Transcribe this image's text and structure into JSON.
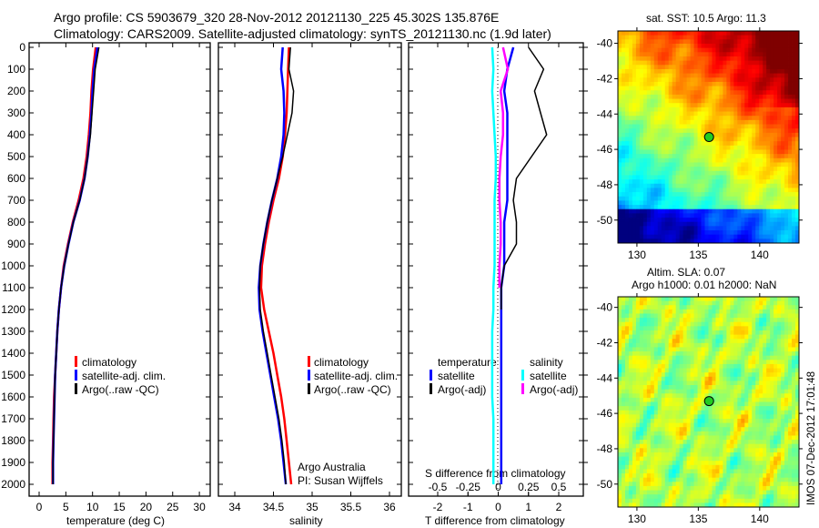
{
  "title_line1": "Argo profile: CS 5903679_320 28-Nov-2012 20121130_225 45.302S 135.876E",
  "title_line2": "Climatology: CARS2009. Satellite-adjusted climatology: synTS_20121130.nc (1.9d later)",
  "colors": {
    "climatology": "#ff0000",
    "satellite": "#0000ff",
    "argo": "#000000",
    "sal_satellite": "#00ffff",
    "sal_argo": "#ff00ff"
  },
  "chart_data": [
    {
      "type": "line",
      "name": "temperature-profile",
      "xlabel": "temperature (deg C)",
      "ylabel": "",
      "xlim": [
        -2,
        32
      ],
      "ylim": [
        2050,
        0
      ],
      "xticks": [
        "0",
        "5",
        "10",
        "15",
        "20",
        "25",
        "30"
      ],
      "yticks": [
        "0",
        "100",
        "200",
        "300",
        "400",
        "500",
        "600",
        "700",
        "800",
        "900",
        "1000",
        "1100",
        "1200",
        "1300",
        "1400",
        "1500",
        "1600",
        "1700",
        "1800",
        "1900",
        "2000"
      ],
      "depth": [
        0,
        100,
        200,
        300,
        400,
        500,
        600,
        700,
        800,
        900,
        1000,
        1100,
        1200,
        1300,
        1400,
        1500,
        1600,
        1700,
        1800,
        1900,
        2000
      ],
      "series": [
        {
          "name": "climatology",
          "values": [
            10.6,
            10.1,
            9.8,
            9.6,
            9.3,
            8.9,
            8.3,
            7.4,
            6.3,
            5.4,
            4.6,
            4.1,
            3.7,
            3.4,
            3.2,
            3.0,
            2.8,
            2.7,
            2.6,
            2.5,
            2.5
          ]
        },
        {
          "name": "satellite-adj. clim.",
          "values": [
            10.9,
            10.3,
            10.0,
            9.8,
            9.5,
            9.1,
            8.5,
            7.6,
            6.4,
            5.5,
            4.7,
            4.1,
            3.7,
            3.4,
            3.2,
            3.0,
            2.9,
            2.8,
            2.7,
            2.6,
            2.6
          ]
        },
        {
          "name": "Argo(..raw -QC)",
          "values": [
            11.2,
            10.5,
            10.2,
            9.9,
            9.6,
            9.1,
            8.5,
            7.6,
            6.4,
            5.5,
            4.7,
            4.1,
            3.7,
            3.4,
            3.2,
            3.0,
            2.9,
            2.8,
            2.7,
            2.6,
            2.6
          ]
        }
      ],
      "legend": [
        "climatology",
        "satellite-adj. clim.",
        "Argo(..raw -QC)"
      ]
    },
    {
      "type": "line",
      "name": "salinity-profile",
      "xlabel": "salinity",
      "xlim": [
        33.8,
        36.15
      ],
      "ylim": [
        2050,
        0
      ],
      "xticks": [
        "34",
        "34.5",
        "35",
        "35.5",
        "36"
      ],
      "depth": [
        0,
        100,
        200,
        300,
        400,
        500,
        600,
        700,
        800,
        900,
        1000,
        1100,
        1200,
        1300,
        1400,
        1500,
        1600,
        1700,
        1800,
        1900,
        2000
      ],
      "series": [
        {
          "name": "climatology",
          "values": [
            34.7,
            34.69,
            34.68,
            34.67,
            34.65,
            34.62,
            34.57,
            34.5,
            34.44,
            34.39,
            34.35,
            34.34,
            34.38,
            34.44,
            34.5,
            34.55,
            34.6,
            34.64,
            34.67,
            34.7,
            34.73
          ]
        },
        {
          "name": "satellite-adj. clim.",
          "values": [
            34.62,
            34.6,
            34.63,
            34.64,
            34.63,
            34.6,
            34.55,
            34.48,
            34.42,
            34.37,
            34.33,
            34.31,
            34.32,
            34.36,
            34.41,
            34.46,
            34.51,
            34.56,
            34.6,
            34.63,
            34.66
          ]
        },
        {
          "name": "Argo(..raw -QC)",
          "values": [
            34.72,
            34.7,
            34.76,
            34.74,
            34.68,
            34.62,
            34.55,
            34.48,
            34.42,
            34.37,
            34.33,
            34.32,
            34.33,
            34.37,
            34.42,
            34.47,
            34.52,
            34.57,
            34.61,
            34.64,
            34.66
          ]
        }
      ],
      "legend": [
        "climatology",
        "satellite-adj. clim.",
        "Argo(..raw -QC)"
      ],
      "annotation": [
        "Argo Australia",
        "PI: Susan Wijffels"
      ]
    },
    {
      "type": "line",
      "name": "difference-profile",
      "xlabel": "T difference from climatology",
      "x2label": "S difference from climatology",
      "xlim": [
        -3,
        3
      ],
      "xticks": [
        "-2",
        "-1",
        "0",
        "1",
        "2"
      ],
      "x2ticks": [
        "-0.5",
        "-0.25",
        "0",
        "0.25",
        "0.5"
      ],
      "depth": [
        0,
        100,
        200,
        300,
        400,
        500,
        600,
        700,
        800,
        900,
        1000,
        1100,
        1200,
        1300,
        1400,
        1500,
        1600,
        1700,
        1800,
        1900,
        2000
      ],
      "series": [
        {
          "name": "temperature satellite",
          "axis": "T",
          "values": [
            0.5,
            0.3,
            0.2,
            0.3,
            0.3,
            0.3,
            0.3,
            0.3,
            0.2,
            0.2,
            0.2,
            0.1,
            0.1,
            0.1,
            0.1,
            0.1,
            0.1,
            0.1,
            0.1,
            0.1,
            0.1
          ]
        },
        {
          "name": "temperature Argo(-adj)",
          "axis": "T",
          "values": [
            1.0,
            1.5,
            1.2,
            1.4,
            1.6,
            1.1,
            0.6,
            0.5,
            0.6,
            0.6,
            0.2,
            0.1,
            0.1,
            null,
            null,
            null,
            null,
            null,
            null,
            null,
            null
          ]
        },
        {
          "name": "salinity satellite",
          "axis": "S",
          "values": [
            -0.05,
            -0.04,
            -0.05,
            -0.04,
            -0.03,
            -0.02,
            -0.02,
            -0.03,
            -0.03,
            -0.03,
            -0.03,
            -0.04,
            -0.04,
            -0.05,
            -0.05,
            -0.05,
            -0.05,
            -0.04,
            -0.04,
            -0.04,
            -0.04
          ]
        },
        {
          "name": "salinity Argo(-adj)",
          "axis": "S",
          "values": [
            0.04,
            0.08,
            0.02,
            0.04,
            0.04,
            0.02,
            0.01,
            0.01,
            0.02,
            0.02,
            0.01,
            0.01,
            null,
            null,
            null,
            null,
            null,
            null,
            null,
            null,
            null
          ]
        }
      ],
      "legend": {
        "temperature_title": "temperature",
        "salinity_title": "salinity",
        "satellite": "satellite",
        "argo": "Argo(-adj)"
      }
    },
    {
      "type": "heatmap",
      "name": "sst-map",
      "title": "sat. SST: 10.5 Argo: 11.3",
      "xlim": [
        128.45,
        143.2
      ],
      "ylim": [
        -51.3,
        -39.3
      ],
      "xticks": [
        "130",
        "135",
        "140"
      ],
      "yticks": [
        "-40",
        "-42",
        "-44",
        "-46",
        "-48",
        "-50"
      ],
      "marker": {
        "lon": 135.876,
        "lat": -45.302
      }
    },
    {
      "type": "heatmap",
      "name": "sla-map",
      "title1": "Altim. SLA: 0.07",
      "title2": "Argo h1000: 0.01 h2000: NaN",
      "xlim": [
        128.45,
        143.2
      ],
      "ylim": [
        -51.3,
        -39.4
      ],
      "xticks": [
        "130",
        "135",
        "140"
      ],
      "yticks": [
        "-40",
        "-42",
        "-44",
        "-46",
        "-48",
        "-50"
      ],
      "marker": {
        "lon": 135.876,
        "lat": -45.302
      }
    }
  ],
  "timestamp": "IMOS 07-Dec-2012 17:01:48"
}
